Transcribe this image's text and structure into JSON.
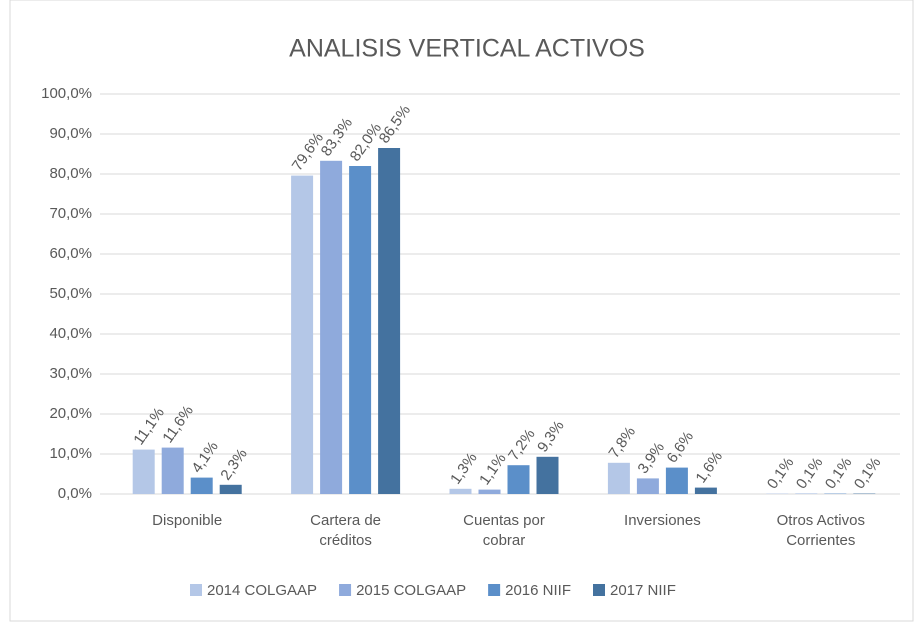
{
  "chart_data": {
    "type": "bar",
    "title": "ANALISIS VERTICAL ACTIVOS",
    "categories": [
      "Disponible",
      "Cartera de\ncréditos",
      "Cuentas por\ncobrar",
      "Inversiones",
      "Otros Activos\nCorrientes"
    ],
    "series": [
      {
        "name": "2014 COLGAAP",
        "color": "#b4c7e7",
        "values": [
          11.1,
          79.6,
          1.3,
          7.8,
          0.1
        ],
        "value_labels": [
          "11,1%",
          "79,6%",
          "1,3%",
          "7,8%",
          "0,1%"
        ]
      },
      {
        "name": "2015 COLGAAP",
        "color": "#8faadc",
        "values": [
          11.6,
          83.3,
          1.1,
          3.9,
          0.1
        ],
        "value_labels": [
          "11,6%",
          "83,3%",
          "1,1%",
          "3,9%",
          "0,1%"
        ]
      },
      {
        "name": "2016 NIIF",
        "color": "#5b8fc9",
        "values": [
          4.1,
          82.0,
          7.2,
          6.6,
          0.1
        ],
        "value_labels": [
          "4,1%",
          "82,0%",
          "7,2%",
          "6,6%",
          "0,1%"
        ]
      },
      {
        "name": "2017 NIIF",
        "color": "#44729f",
        "values": [
          2.3,
          86.5,
          9.3,
          1.6,
          0.1
        ],
        "value_labels": [
          "2,3%",
          "86,5%",
          "9,3%",
          "1,6%",
          "0,1%"
        ]
      }
    ],
    "ylim": [
      0,
      100
    ],
    "yticks": [
      {
        "value": 0,
        "label": "0,0%"
      },
      {
        "value": 10,
        "label": "10,0%"
      },
      {
        "value": 20,
        "label": "20,0%"
      },
      {
        "value": 30,
        "label": "30,0%"
      },
      {
        "value": 40,
        "label": "40,0%"
      },
      {
        "value": 50,
        "label": "50,0%"
      },
      {
        "value": 60,
        "label": "60,0%"
      },
      {
        "value": 70,
        "label": "70,0%"
      },
      {
        "value": 80,
        "label": "80,0%"
      },
      {
        "value": 90,
        "label": "90,0%"
      },
      {
        "value": 100,
        "label": "100,0%"
      }
    ],
    "grid": true,
    "legend": "bottom"
  }
}
